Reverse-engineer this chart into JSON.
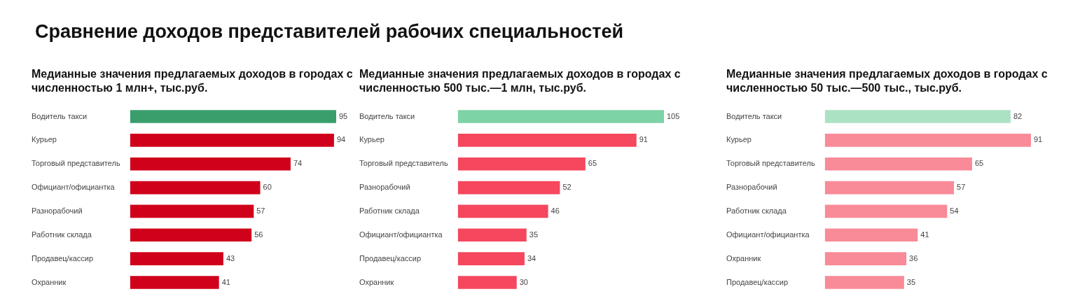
{
  "chart_data": [
    {
      "type": "bar",
      "orientation": "horizontal",
      "title": "Сравнение доходов представителей рабочих специальностей",
      "subtitle": "Медианные значения предлагаемых доходов в городах с численностью 1 млн+, тыс.руб.",
      "categories": [
        "Водитель такси",
        "Курьер",
        "Торговый представитель",
        "Официант/официантка",
        "Разнорабочий",
        "Работник склада",
        "Продавец/кассир",
        "Охранник"
      ],
      "values": [
        95,
        94,
        74,
        60,
        57,
        56,
        43,
        41
      ],
      "colors": [
        "#3a9e6c",
        "#d0021b",
        "#d0021b",
        "#d0021b",
        "#d0021b",
        "#d0021b",
        "#d0021b",
        "#d0021b"
      ],
      "data_labels": true,
      "grid": false,
      "legend": false,
      "tick_labels": "y"
    },
    {
      "type": "bar",
      "orientation": "horizontal",
      "subtitle": "Медианные значения предлагаемых доходов в городах с численностью 500 тыс.—1 млн, тыс.руб.",
      "categories": [
        "Водитель такси",
        "Курьер",
        "Торговый представитель",
        "Разнорабочий",
        "Работник склада",
        "Официант/официантка",
        "Продавец/кассир",
        "Охранник"
      ],
      "values": [
        105,
        91,
        65,
        52,
        46,
        35,
        34,
        30
      ],
      "colors": [
        "#7dd3a6",
        "#f5475e",
        "#f5475e",
        "#f5475e",
        "#f5475e",
        "#f5475e",
        "#f5475e",
        "#f5475e"
      ],
      "data_labels": true,
      "grid": false,
      "legend": false,
      "tick_labels": "y"
    },
    {
      "type": "bar",
      "orientation": "horizontal",
      "subtitle": "Медианные значения предлагаемых доходов в городах с численностью 50 тыс.—500 тыс., тыс.руб.",
      "categories": [
        "Водитель такси",
        "Курьер",
        "Торговый представитель",
        "Разнорабочий",
        "Работник склада",
        "Официант/официантка",
        "Охранник",
        "Продавец/кассир"
      ],
      "values": [
        82,
        91,
        65,
        57,
        54,
        41,
        36,
        35
      ],
      "colors": [
        "#abe2c4",
        "#f98a98",
        "#f98a98",
        "#f98a98",
        "#f98a98",
        "#f98a98",
        "#f98a98",
        "#f98a98"
      ],
      "data_labels": true,
      "grid": false,
      "legend": false,
      "tick_labels": "y"
    }
  ]
}
